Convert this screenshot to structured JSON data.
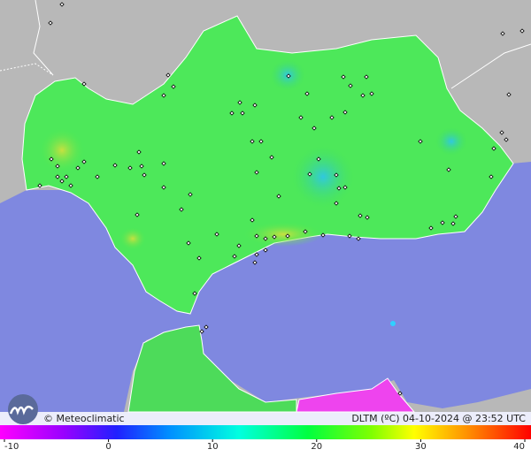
{
  "footer": {
    "credit": "© Meteoclimatic",
    "caption": "DLTM (ºC)  04-10-2024 @ 23:52 UTC"
  },
  "legend": {
    "ticks": [
      -10,
      0,
      10,
      20,
      30,
      40
    ]
  }
}
